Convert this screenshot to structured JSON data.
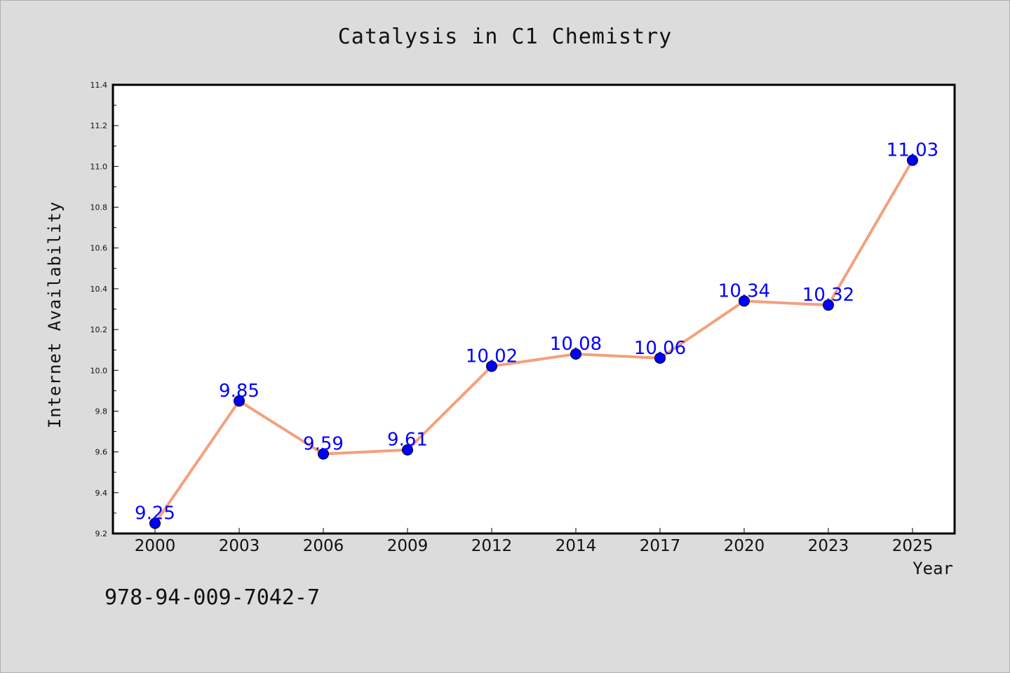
{
  "chart_data": {
    "type": "line",
    "title": "Catalysis in C1 Chemistry",
    "xlabel": "Year",
    "ylabel": "Internet Availability",
    "categories": [
      "2000",
      "2003",
      "2006",
      "2009",
      "2012",
      "2014",
      "2017",
      "2020",
      "2023",
      "2025"
    ],
    "values": [
      9.25,
      9.85,
      9.59,
      9.61,
      10.02,
      10.08,
      10.06,
      10.34,
      10.32,
      11.03
    ],
    "data_labels": [
      "9.25",
      "9.85",
      "9.59",
      "9.61",
      "10.02",
      "10.08",
      "10.06",
      "10.34",
      "10.32",
      "11.03"
    ],
    "ylim": [
      9.2,
      11.4
    ],
    "yticks": [
      "9.2",
      "9.4",
      "9.6",
      "9.8",
      "10.0",
      "10.2",
      "10.4",
      "10.6",
      "10.8",
      "11.0",
      "11.2",
      "11.4"
    ],
    "line_color": "#f4a07e",
    "marker_color": "#0000ff",
    "label_color": "#0000ff",
    "grid": false,
    "legend": false
  },
  "footnote": "978-94-009-7042-7"
}
